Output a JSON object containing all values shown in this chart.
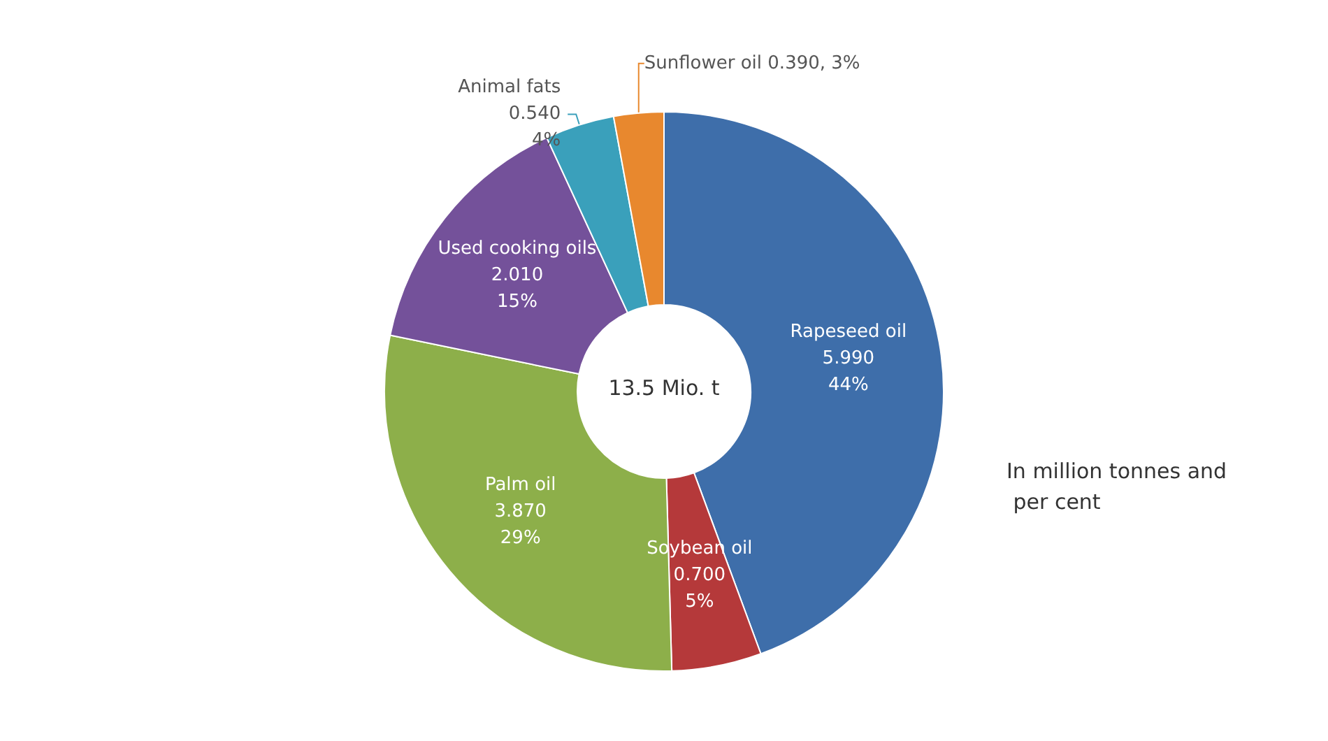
{
  "chart_data": {
    "type": "donut",
    "categories": [
      "Rapeseed oil",
      "Soybean oil",
      "Palm oil",
      "Used cooking oils",
      "Animal fats",
      "Sunflower oil"
    ],
    "values": [
      5.99,
      0.7,
      3.87,
      2.01,
      0.54,
      0.39
    ],
    "value_labels": [
      "5.990\n44%",
      "0.700\n5%",
      "3.870\n29%",
      "2.010\n15%",
      "0.540\n4%",
      "0.390, 3%"
    ],
    "colors": [
      "#3e6eaa",
      "#b5393a",
      "#8daf4a",
      "#74519a",
      "#3aa0bb",
      "#e8882e"
    ],
    "annotations": [
      "13.5 Mio. t",
      "In million tonnes and per cent"
    ],
    "legend": false
  }
}
